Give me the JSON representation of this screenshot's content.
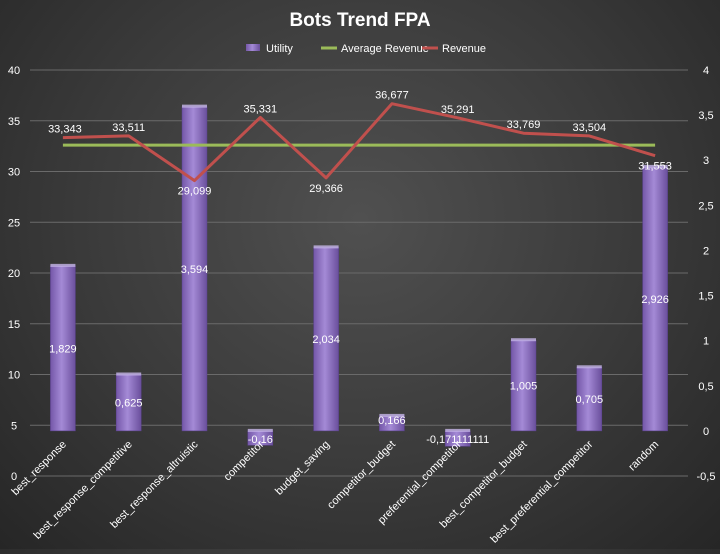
{
  "chart_data": {
    "type": "bar",
    "title": "Bots Trend FPA",
    "categories": [
      "best_response",
      "best_response_competitive",
      "best_response_altruistic",
      "competitor",
      "budget_saving",
      "competitor_budget",
      "preferential_competitor",
      "best_competitor_budget",
      "best_preferential_competitor",
      "random"
    ],
    "series": [
      {
        "name": "Utility",
        "kind": "bar",
        "axis": "secondary",
        "values": [
          1.829,
          0.625,
          3.594,
          -0.16,
          2.034,
          0.166,
          -0.171111111,
          1.005,
          0.705,
          2.926
        ],
        "labels": [
          "1,829",
          "0,625",
          "3,594",
          "-0,16",
          "2,034",
          "0,166",
          "-0,171111111",
          "1,005",
          "0,705",
          "2,926"
        ],
        "color": "#8e6fc1"
      },
      {
        "name": "Average Revenue",
        "kind": "line",
        "axis": "primary",
        "values": [
          32.6,
          32.6,
          32.6,
          32.6,
          32.6,
          32.6,
          32.6,
          32.6,
          32.6,
          32.6
        ],
        "color": "#9bbb59"
      },
      {
        "name": "Revenue",
        "kind": "line",
        "axis": "primary",
        "values": [
          33.343,
          33.511,
          29.099,
          35.331,
          29.366,
          36.677,
          35.291,
          33.769,
          33.504,
          31.553
        ],
        "labels": [
          "33,343",
          "33,511",
          "29,099",
          "35,331",
          "29,366",
          "36,677",
          "35,291",
          "33,769",
          "33,504",
          "31,553"
        ],
        "color": "#c0504d"
      }
    ],
    "y_primary": {
      "ticks": [
        0,
        5,
        10,
        15,
        20,
        25,
        30,
        35,
        40
      ],
      "tick_labels": [
        "0",
        "5",
        "10",
        "15",
        "20",
        "25",
        "30",
        "35",
        "40"
      ]
    },
    "y_secondary": {
      "ticks": [
        -0.5,
        0,
        0.5,
        1,
        1.5,
        2,
        2.5,
        3,
        3.5,
        4
      ],
      "tick_labels": [
        "-0,5",
        "0",
        "0,5",
        "1",
        "1,5",
        "2",
        "2,5",
        "3",
        "3,5",
        "4"
      ]
    },
    "legend_position": "top",
    "grid": true
  }
}
